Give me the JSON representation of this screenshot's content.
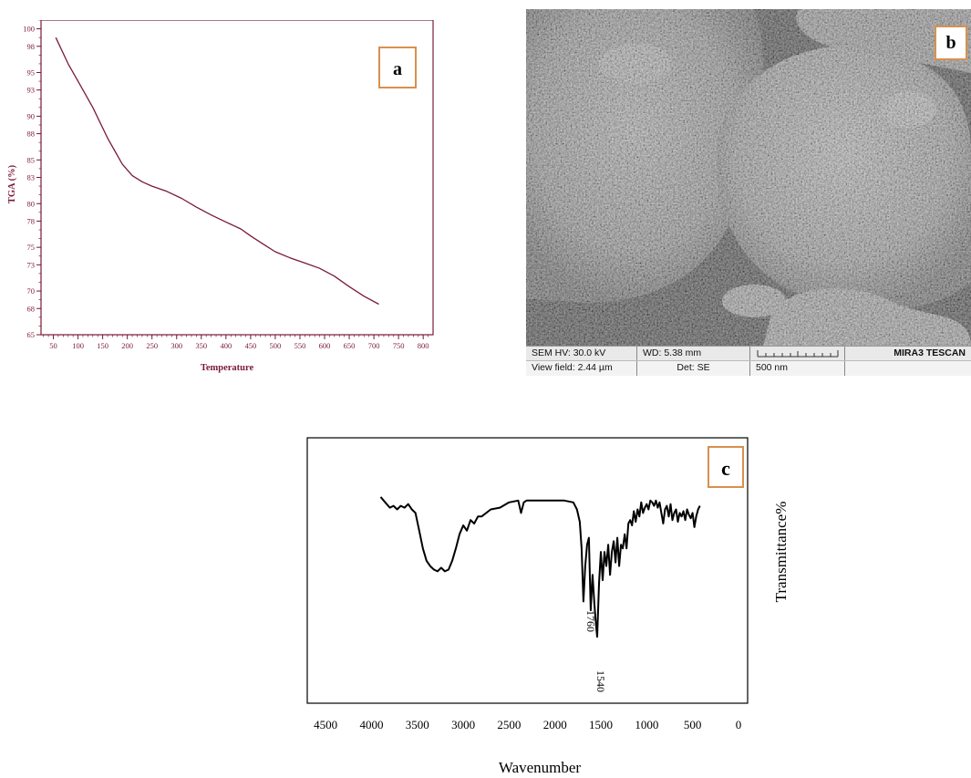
{
  "chart_data": [
    {
      "type": "line",
      "panel_label": "a",
      "title": "",
      "xlabel": "Temperature",
      "ylabel": "TGA (%)",
      "xlim": [
        25,
        820
      ],
      "ylim": [
        65,
        101
      ],
      "x_ticks": [
        50,
        100,
        150,
        200,
        250,
        300,
        350,
        400,
        450,
        500,
        550,
        600,
        650,
        700,
        750,
        800
      ],
      "y_ticks": [
        65,
        68,
        70,
        73,
        75,
        78,
        80,
        83,
        85,
        88,
        90,
        93,
        95,
        98,
        100
      ],
      "grid": false,
      "series": [
        {
          "x": [
            55,
            80,
            100,
            130,
            160,
            190,
            210,
            230,
            250,
            280,
            310,
            340,
            370,
            400,
            430,
            450,
            480,
            500,
            530,
            560,
            590,
            620,
            650,
            680,
            710
          ],
          "y": [
            99,
            96,
            94,
            91,
            87.5,
            84.5,
            83.2,
            82.5,
            82.0,
            81.4,
            80.6,
            79.6,
            78.7,
            77.9,
            77.1,
            76.3,
            75.2,
            74.5,
            73.8,
            73.2,
            72.6,
            71.7,
            70.5,
            69.4,
            68.5
          ]
        }
      ],
      "colors": {
        "line": "#7a1a35",
        "axes": "#7a1a35",
        "text": "#7a1a35",
        "badge_border": "#d9904f"
      }
    },
    {
      "type": "line",
      "panel_label": "c",
      "title": "",
      "xlabel": "Wavenumber",
      "ylabel": "Transmittance%",
      "x_reversed": true,
      "xlim": [
        4700,
        -100
      ],
      "x_ticks": [
        4500,
        4000,
        3500,
        3000,
        2500,
        2000,
        1500,
        1000,
        500,
        0
      ],
      "grid": false,
      "annotations": [
        "1760",
        "1540"
      ],
      "series": [
        {
          "x": [
            3900,
            3850,
            3800,
            3760,
            3720,
            3680,
            3640,
            3600,
            3560,
            3520,
            3480,
            3440,
            3400,
            3360,
            3320,
            3280,
            3240,
            3200,
            3160,
            3120,
            3080,
            3040,
            3000,
            2960,
            2920,
            2880,
            2840,
            2800,
            2700,
            2600,
            2500,
            2400,
            2370,
            2340,
            2310,
            2200,
            2000,
            1900,
            1800,
            1760,
            1730,
            1710,
            1690,
            1670,
            1650,
            1630,
            1610,
            1590,
            1570,
            1550,
            1540,
            1520,
            1500,
            1480,
            1460,
            1440,
            1420,
            1400,
            1380,
            1360,
            1340,
            1320,
            1300,
            1280,
            1260,
            1240,
            1220,
            1200,
            1180,
            1160,
            1140,
            1120,
            1100,
            1080,
            1060,
            1040,
            1020,
            1000,
            980,
            960,
            940,
            920,
            900,
            880,
            860,
            840,
            820,
            800,
            780,
            760,
            740,
            720,
            700,
            680,
            660,
            640,
            620,
            600,
            580,
            560,
            540,
            520,
            500,
            480,
            460,
            440,
            420
          ],
          "y": [
            99,
            96,
            93,
            94,
            92,
            94,
            93,
            95,
            92,
            90,
            80,
            70,
            63,
            60,
            58,
            57,
            59,
            57,
            58,
            63,
            70,
            78,
            83,
            80,
            86,
            84,
            88,
            88,
            92,
            93,
            96,
            97,
            90,
            96,
            97,
            97,
            97,
            97,
            96,
            92,
            85,
            70,
            40,
            60,
            72,
            76,
            35,
            55,
            38,
            25,
            20,
            50,
            68,
            52,
            68,
            60,
            72,
            55,
            68,
            74,
            62,
            76,
            60,
            72,
            70,
            78,
            70,
            84,
            86,
            83,
            91,
            85,
            92,
            88,
            96,
            90,
            93,
            95,
            92,
            97,
            96,
            94,
            97,
            93,
            96,
            90,
            84,
            92,
            94,
            88,
            95,
            86,
            90,
            92,
            85,
            90,
            88,
            91,
            86,
            92,
            89,
            87,
            90,
            82,
            88,
            92,
            94
          ]
        }
      ],
      "colors": {
        "line": "#000000",
        "axes": "#000000",
        "text": "#000000",
        "badge_border": "#d9904f"
      }
    }
  ],
  "sem": {
    "panel_label": "b",
    "hv": "SEM HV: 30.0 kV",
    "wd": "WD: 5.38 mm",
    "brand": "MIRA3 TESCAN",
    "view_field": "View field: 2.44 µm",
    "det": "Det: SE",
    "scale": "500 nm"
  }
}
